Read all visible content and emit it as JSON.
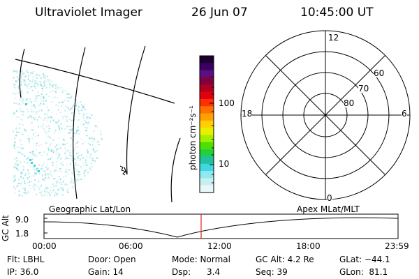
{
  "header": {
    "instrument": "Ultraviolet Imager",
    "date": "26 Jun 07",
    "time": "10:45:00 UT"
  },
  "colorbar": {
    "unit_label": "photon cm⁻²s⁻¹",
    "tick_labels": [
      "100",
      "10"
    ],
    "colors": [
      "#1a0030",
      "#3a0060",
      "#5a1080",
      "#800040",
      "#b00020",
      "#e00010",
      "#ff3000",
      "#ff7000",
      "#ffa000",
      "#ffd000",
      "#e8f000",
      "#a0f000",
      "#50e000",
      "#20d040",
      "#20c0a0",
      "#40d8e0",
      "#90e8f0",
      "#c8f0f0",
      "#e8f8f8"
    ]
  },
  "polar": {
    "mlt_labels": {
      "top": "12",
      "left": "18",
      "right": "6",
      "bottom": "0"
    },
    "lat_labels": [
      "60",
      "70",
      "80"
    ]
  },
  "timeline": {
    "y_axis_label": "GC Alt",
    "y_ticks": [
      "9.0",
      "1.8"
    ],
    "left_title": "Geographic Lat/Lon",
    "right_title": "Apex MLat/MLT",
    "x_ticks": [
      "00:00",
      "06:00",
      "12:00",
      "18:00",
      "23:59"
    ],
    "marker_color": "#e02020"
  },
  "info": {
    "flt": "Flt: LBHL",
    "ip": "IP: 36.0",
    "door": "Door: Open",
    "gain": "Gain: 14",
    "mode": "Mode: Normal",
    "dsp": "Dsp:      3.4",
    "gc_alt": "GC Alt: 4.2 Re",
    "seq": "Seq: 39",
    "glat": "GLat: −44.1",
    "glon": "GLon:  81.1"
  }
}
